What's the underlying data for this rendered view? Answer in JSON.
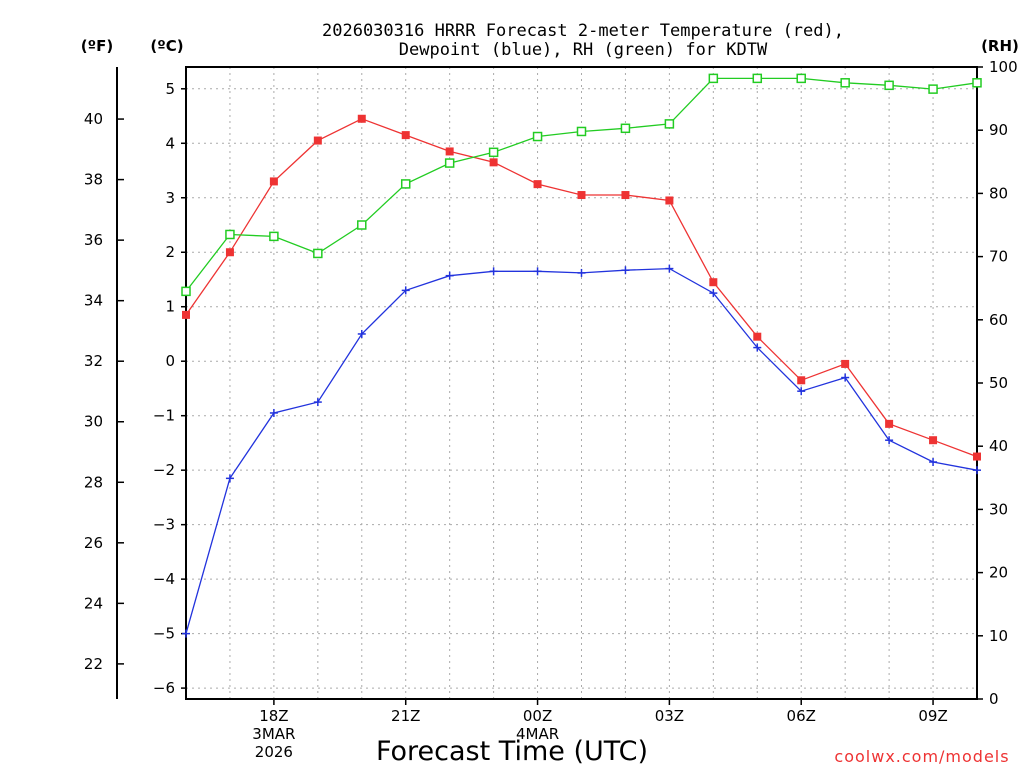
{
  "chart_data": {
    "type": "line",
    "title_line1": "2026030316 HRRR Forecast 2-meter Temperature (red),",
    "title_line2": "Dewpoint (blue), RH (green) for KDTW",
    "xlabel": "Forecast Time (UTC)",
    "credit": "coolwx.com/models",
    "unit_f": "(ºF)",
    "unit_c": "(ºC)",
    "unit_rh": "(RH)",
    "x_hours": [
      16,
      17,
      18,
      19,
      20,
      21,
      22,
      23,
      24,
      25,
      26,
      27,
      28,
      29,
      30,
      31,
      32,
      33,
      34
    ],
    "xlim": [
      16,
      34
    ],
    "x_ticks": [
      {
        "hour": 18,
        "lines": [
          "18Z",
          "3MAR",
          "2026"
        ]
      },
      {
        "hour": 21,
        "lines": [
          "21Z"
        ]
      },
      {
        "hour": 24,
        "lines": [
          "00Z",
          "4MAR"
        ]
      },
      {
        "hour": 27,
        "lines": [
          "03Z"
        ]
      },
      {
        "hour": 30,
        "lines": [
          "06Z"
        ]
      },
      {
        "hour": 33,
        "lines": [
          "09Z"
        ]
      }
    ],
    "ylim_c": [
      -6.2,
      5.4
    ],
    "yticks_c": [
      -6,
      -5,
      -4,
      -3,
      -2,
      -1,
      0,
      1,
      2,
      3,
      4,
      5
    ],
    "yticks_f": [
      22,
      24,
      26,
      28,
      30,
      32,
      34,
      36,
      38,
      40
    ],
    "ylim_rh": [
      0,
      100
    ],
    "yticks_rh": [
      0,
      10,
      20,
      30,
      40,
      50,
      60,
      70,
      80,
      90,
      100
    ],
    "series": [
      {
        "name": "Temperature",
        "color": "#ee3333",
        "marker": "filled-square",
        "values_c": [
          0.85,
          2.0,
          3.3,
          4.05,
          4.45,
          4.15,
          3.85,
          3.65,
          3.25,
          3.05,
          3.05,
          2.95,
          1.45,
          0.45,
          -0.35,
          -0.05,
          -1.15,
          -1.45,
          -1.75
        ]
      },
      {
        "name": "Dewpoint",
        "color": "#2233dd",
        "marker": "plus",
        "values_c": [
          -5.0,
          -2.15,
          -0.95,
          -0.75,
          0.5,
          1.3,
          1.57,
          1.65,
          1.65,
          1.62,
          1.67,
          1.7,
          1.25,
          0.25,
          -0.55,
          -0.3,
          -1.45,
          -1.85,
          -2.0
        ]
      },
      {
        "name": "RH",
        "color": "#22cc22",
        "marker": "open-square",
        "values_rh": [
          64.5,
          73.5,
          73.2,
          70.5,
          75.0,
          81.5,
          84.8,
          86.5,
          89.0,
          89.8,
          90.3,
          91.0,
          98.2,
          98.2,
          98.2,
          97.5,
          97.1,
          96.5,
          97.5
        ]
      }
    ]
  }
}
